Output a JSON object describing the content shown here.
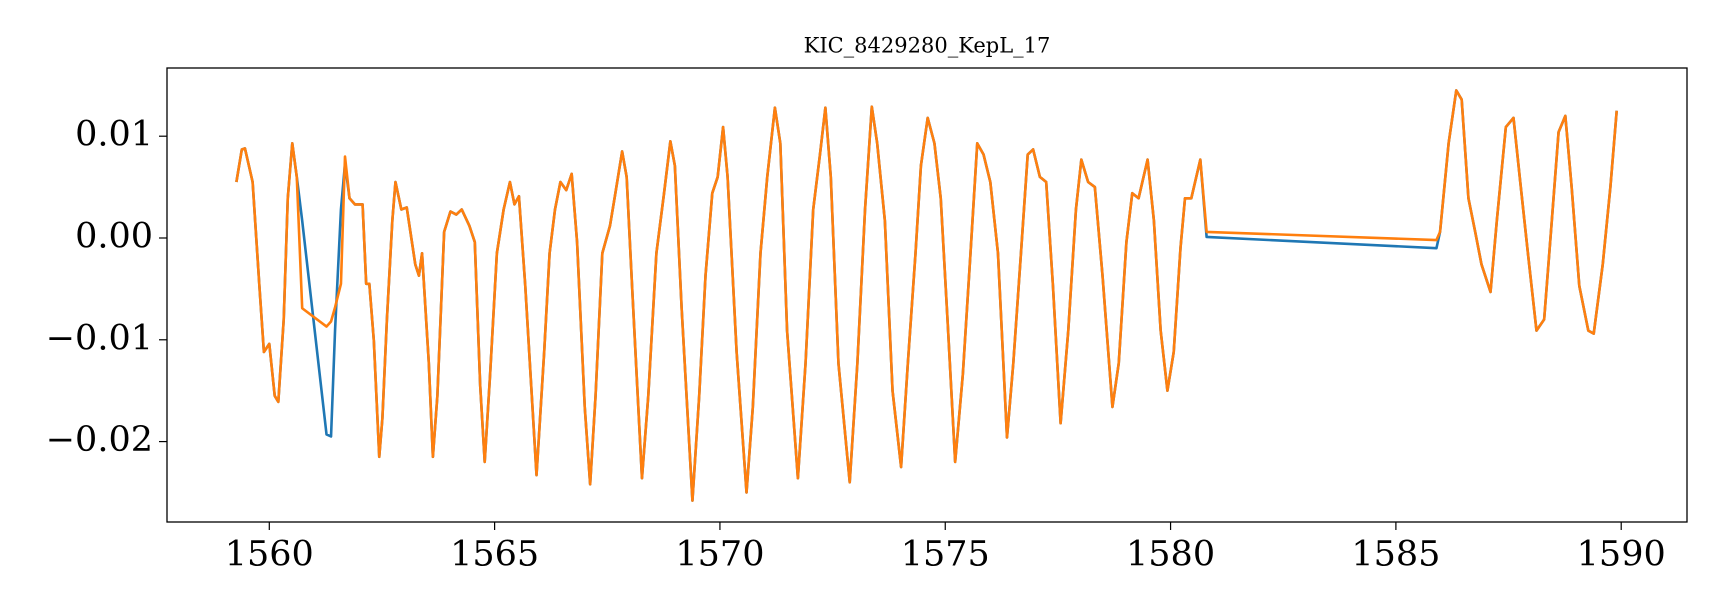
{
  "chart_data": {
    "type": "line",
    "title": "KIC_8429280_KepL_17",
    "x": [
      1559.27,
      1559.39,
      1559.46,
      1559.63,
      1559.78,
      1559.88,
      1560.0,
      1560.12,
      1560.2,
      1560.32,
      1560.41,
      1560.51,
      1560.61,
      1560.73,
      1561.27,
      1561.37,
      1561.46,
      1561.59,
      1561.68,
      1561.78,
      1561.9,
      1562.07,
      1562.15,
      1562.22,
      1562.32,
      1562.44,
      1562.51,
      1562.61,
      1562.73,
      1562.8,
      1562.93,
      1563.05,
      1563.24,
      1563.32,
      1563.39,
      1563.54,
      1563.63,
      1563.73,
      1563.88,
      1564.02,
      1564.15,
      1564.27,
      1564.44,
      1564.56,
      1564.68,
      1564.78,
      1564.9,
      1565.05,
      1565.2,
      1565.34,
      1565.44,
      1565.54,
      1565.68,
      1565.93,
      1566.1,
      1566.22,
      1566.34,
      1566.46,
      1566.59,
      1566.71,
      1566.83,
      1567.0,
      1567.12,
      1567.24,
      1567.39,
      1567.56,
      1567.68,
      1567.83,
      1567.93,
      1568.05,
      1568.27,
      1568.41,
      1568.59,
      1568.76,
      1568.9,
      1569.0,
      1569.15,
      1569.39,
      1569.54,
      1569.68,
      1569.83,
      1569.95,
      1570.07,
      1570.17,
      1570.37,
      1570.59,
      1570.73,
      1570.9,
      1571.05,
      1571.22,
      1571.34,
      1571.49,
      1571.73,
      1571.9,
      1572.07,
      1572.22,
      1572.34,
      1572.46,
      1572.63,
      1572.88,
      1573.05,
      1573.22,
      1573.37,
      1573.49,
      1573.66,
      1573.83,
      1574.02,
      1574.17,
      1574.34,
      1574.46,
      1574.61,
      1574.76,
      1574.9,
      1575.05,
      1575.22,
      1575.39,
      1575.56,
      1575.71,
      1575.85,
      1576.0,
      1576.17,
      1576.37,
      1576.51,
      1576.68,
      1576.83,
      1576.95,
      1577.1,
      1577.24,
      1577.39,
      1577.56,
      1577.73,
      1577.9,
      1578.02,
      1578.17,
      1578.32,
      1578.49,
      1578.71,
      1578.85,
      1579.02,
      1579.15,
      1579.29,
      1579.49,
      1579.63,
      1579.78,
      1579.93,
      1580.07,
      1580.22,
      1580.32,
      1580.46,
      1580.66,
      1580.8,
      1585.9,
      1585.98,
      1586.17,
      1586.34,
      1586.46,
      1586.61,
      1586.76,
      1586.9,
      1587.1,
      1587.24,
      1587.44,
      1587.61,
      1587.76,
      1587.93,
      1588.12,
      1588.29,
      1588.46,
      1588.61,
      1588.76,
      1588.9,
      1589.07,
      1589.27,
      1589.39,
      1589.59,
      1589.76,
      1589.9
    ],
    "series": [
      {
        "color": "#1f77b4",
        "values": [
          0.0055,
          0.0087,
          0.0088,
          0.0055,
          -0.0047,
          -0.0112,
          -0.0104,
          -0.0155,
          -0.0161,
          -0.008,
          0.0039,
          0.0093,
          0.006,
          0.0017,
          -0.0193,
          -0.0195,
          -0.009,
          0.0028,
          0.0073,
          0.0039,
          0.0033,
          0.0033,
          -0.0045,
          -0.0045,
          -0.0101,
          -0.0215,
          -0.0177,
          -0.008,
          0.0017,
          0.0055,
          0.0028,
          0.003,
          -0.0026,
          -0.0037,
          -0.0015,
          -0.0123,
          -0.0215,
          -0.0155,
          0.0006,
          0.0026,
          0.0023,
          0.0028,
          0.0012,
          -0.0004,
          -0.0145,
          -0.022,
          -0.0134,
          -0.0015,
          0.0028,
          0.0055,
          0.0033,
          0.0041,
          -0.0047,
          -0.0233,
          -0.0112,
          -0.0015,
          0.0028,
          0.0055,
          0.0047,
          0.0063,
          -0.0004,
          -0.0166,
          -0.0242,
          -0.0155,
          -0.0015,
          0.0012,
          0.0044,
          0.0085,
          0.006,
          -0.0047,
          -0.0236,
          -0.0155,
          -0.0015,
          0.0044,
          0.0095,
          0.0071,
          -0.0069,
          -0.0258,
          -0.0155,
          -0.0037,
          0.0044,
          0.006,
          0.0109,
          0.006,
          -0.0112,
          -0.025,
          -0.0166,
          -0.0015,
          0.006,
          0.0128,
          0.0093,
          -0.0091,
          -0.0236,
          -0.0123,
          0.0028,
          0.0082,
          0.0128,
          0.006,
          -0.0123,
          -0.024,
          -0.0123,
          0.0028,
          0.0129,
          0.0093,
          0.0017,
          -0.015,
          -0.0225,
          -0.0123,
          -0.0015,
          0.0071,
          0.0118,
          0.0093,
          0.0039,
          -0.008,
          -0.022,
          -0.0134,
          -0.0015,
          0.0093,
          0.0082,
          0.0055,
          -0.0015,
          -0.0196,
          -0.0123,
          -0.0015,
          0.0082,
          0.0087,
          0.006,
          0.0055,
          -0.0047,
          -0.0182,
          -0.0091,
          0.0028,
          0.0077,
          0.0055,
          0.005,
          -0.0037,
          -0.0166,
          -0.0123,
          -0.0004,
          0.0044,
          0.0039,
          0.0077,
          0.0017,
          -0.0091,
          -0.015,
          -0.0112,
          -0.001,
          0.0039,
          0.0039,
          0.0077,
          0.0001,
          -0.001,
          0.0006,
          0.0093,
          0.0145,
          0.0136,
          0.0039,
          0.0006,
          -0.0026,
          -0.0053,
          0.0017,
          0.0109,
          0.0118,
          0.0055,
          -0.0015,
          -0.0091,
          -0.008,
          0.0017,
          0.0104,
          0.012,
          0.005,
          -0.0047,
          -0.0091,
          -0.0094,
          -0.0026,
          0.005,
          0.0125
        ]
      },
      {
        "color": "#ff7f0e",
        "values": [
          0.0055,
          0.0087,
          0.0088,
          0.0055,
          -0.0047,
          -0.0112,
          -0.0104,
          -0.0155,
          -0.0161,
          -0.008,
          0.0039,
          0.0093,
          0.006,
          -0.0069,
          -0.0087,
          -0.0082,
          -0.0068,
          -0.0045,
          0.008,
          0.0039,
          0.0033,
          0.0033,
          -0.0045,
          -0.0045,
          -0.0101,
          -0.0215,
          -0.0177,
          -0.008,
          0.0017,
          0.0055,
          0.0028,
          0.003,
          -0.0026,
          -0.0037,
          -0.0015,
          -0.0123,
          -0.0215,
          -0.0155,
          0.0006,
          0.0026,
          0.0023,
          0.0028,
          0.0012,
          -0.0004,
          -0.0145,
          -0.022,
          -0.0134,
          -0.0015,
          0.0028,
          0.0055,
          0.0033,
          0.0041,
          -0.0047,
          -0.0233,
          -0.0112,
          -0.0015,
          0.0028,
          0.0055,
          0.0047,
          0.0063,
          -0.0004,
          -0.0166,
          -0.0242,
          -0.0155,
          -0.0015,
          0.0012,
          0.0044,
          0.0085,
          0.006,
          -0.0047,
          -0.0236,
          -0.0155,
          -0.0015,
          0.0044,
          0.0095,
          0.0071,
          -0.0069,
          -0.0258,
          -0.0155,
          -0.0037,
          0.0044,
          0.006,
          0.0109,
          0.006,
          -0.0112,
          -0.025,
          -0.0166,
          -0.0015,
          0.006,
          0.0128,
          0.0093,
          -0.0091,
          -0.0236,
          -0.0123,
          0.0028,
          0.0082,
          0.0128,
          0.006,
          -0.0123,
          -0.024,
          -0.0123,
          0.0028,
          0.0129,
          0.0093,
          0.0017,
          -0.015,
          -0.0225,
          -0.0123,
          -0.0015,
          0.0071,
          0.0118,
          0.0093,
          0.0039,
          -0.008,
          -0.022,
          -0.0134,
          -0.0015,
          0.0093,
          0.0082,
          0.0055,
          -0.0015,
          -0.0196,
          -0.0123,
          -0.0015,
          0.0082,
          0.0087,
          0.006,
          0.0055,
          -0.0047,
          -0.0182,
          -0.0091,
          0.0028,
          0.0077,
          0.0055,
          0.005,
          -0.0037,
          -0.0166,
          -0.0123,
          -0.0004,
          0.0044,
          0.0039,
          0.0077,
          0.0017,
          -0.0091,
          -0.015,
          -0.0112,
          -0.001,
          0.0039,
          0.0039,
          0.0077,
          0.0006,
          -0.0002,
          0.0006,
          0.0093,
          0.0145,
          0.0136,
          0.0039,
          0.0006,
          -0.0026,
          -0.0053,
          0.0017,
          0.0109,
          0.0118,
          0.0055,
          -0.0015,
          -0.0091,
          -0.008,
          0.0017,
          0.0104,
          0.012,
          0.005,
          -0.0047,
          -0.0091,
          -0.0094,
          -0.0026,
          0.005,
          0.0125
        ]
      }
    ],
    "xlim": [
      1557.73,
      1591.46
    ],
    "ylim": [
      -0.0279,
      0.0167
    ],
    "xticks": [
      1560,
      1565,
      1570,
      1575,
      1580,
      1585,
      1590
    ],
    "yticks": [
      {
        "value": -0.02,
        "label": "−0.02"
      },
      {
        "value": -0.01,
        "label": "−0.01"
      },
      {
        "value": 0,
        "label": "0.00"
      },
      0.01
    ],
    "grid": false
  }
}
